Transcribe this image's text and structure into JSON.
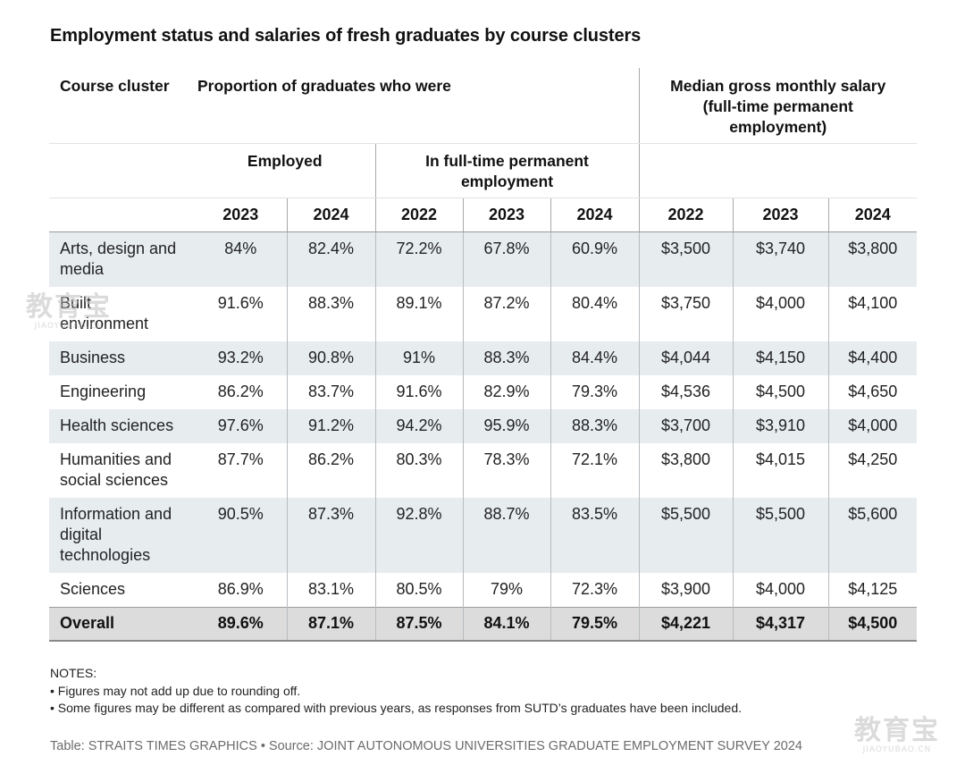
{
  "title": "Employment status and salaries of fresh graduates by course clusters",
  "headers": {
    "course_cluster": "Course cluster",
    "proportion": "Proportion of graduates who were",
    "median_line1": "Median gross monthly salary",
    "median_line2": "(full-time permanent",
    "median_line3": "employment)",
    "employed": "Employed",
    "fulltime_line1": "In full-time permanent",
    "fulltime_line2": "employment",
    "years": [
      "2023",
      "2024",
      "2022",
      "2023",
      "2024",
      "2022",
      "2023",
      "2024"
    ]
  },
  "rows": [
    {
      "label_lines": [
        "Arts, design and",
        "media"
      ],
      "values": [
        "84%",
        "82.4%",
        "72.2%",
        "67.8%",
        "60.9%",
        "$3,500",
        "$3,740",
        "$3,800"
      ]
    },
    {
      "label_lines": [
        "Built",
        "environment"
      ],
      "values": [
        "91.6%",
        "88.3%",
        "89.1%",
        "87.2%",
        "80.4%",
        "$3,750",
        "$4,000",
        "$4,100"
      ]
    },
    {
      "label_lines": [
        "Business"
      ],
      "values": [
        "93.2%",
        "90.8%",
        "91%",
        "88.3%",
        "84.4%",
        "$4,044",
        "$4,150",
        "$4,400"
      ]
    },
    {
      "label_lines": [
        "Engineering"
      ],
      "values": [
        "86.2%",
        "83.7%",
        "91.6%",
        "82.9%",
        "79.3%",
        "$4,536",
        "$4,500",
        "$4,650"
      ]
    },
    {
      "label_lines": [
        "Health sciences"
      ],
      "values": [
        "97.6%",
        "91.2%",
        "94.2%",
        "95.9%",
        "88.3%",
        "$3,700",
        "$3,910",
        "$4,000"
      ]
    },
    {
      "label_lines": [
        "Humanities and",
        "social sciences"
      ],
      "values": [
        "87.7%",
        "86.2%",
        "80.3%",
        "78.3%",
        "72.1%",
        "$3,800",
        "$4,015",
        "$4,250"
      ]
    },
    {
      "label_lines": [
        "Information and",
        "digital",
        "technologies"
      ],
      "values": [
        "90.5%",
        "87.3%",
        "92.8%",
        "88.7%",
        "83.5%",
        "$5,500",
        "$5,500",
        "$5,600"
      ]
    },
    {
      "label_lines": [
        "Sciences"
      ],
      "values": [
        "86.9%",
        "83.1%",
        "80.5%",
        "79%",
        "72.3%",
        "$3,900",
        "$4,000",
        "$4,125"
      ]
    }
  ],
  "overall": {
    "label": "Overall",
    "values": [
      "89.6%",
      "87.1%",
      "87.5%",
      "84.1%",
      "79.5%",
      "$4,221",
      "$4,317",
      "$4,500"
    ]
  },
  "notes": {
    "heading": "NOTES:",
    "items": [
      "• Figures may not add up due to rounding off.",
      "• Some figures may be different as compared with previous years, as responses from SUTD’s graduates have been included."
    ]
  },
  "source": "Table: STRAITS TIMES GRAPHICS • Source: JOINT AUTONOMOUS UNIVERSITIES GRADUATE EMPLOYMENT SURVEY 2024",
  "watermark": {
    "chars": "教育宝",
    "url": "JIAOYUBAO.CN"
  },
  "colors": {
    "row_shade": "#e7ecef",
    "overall_bg": "#dcdcdc",
    "source_text": "#6b6b6b"
  }
}
